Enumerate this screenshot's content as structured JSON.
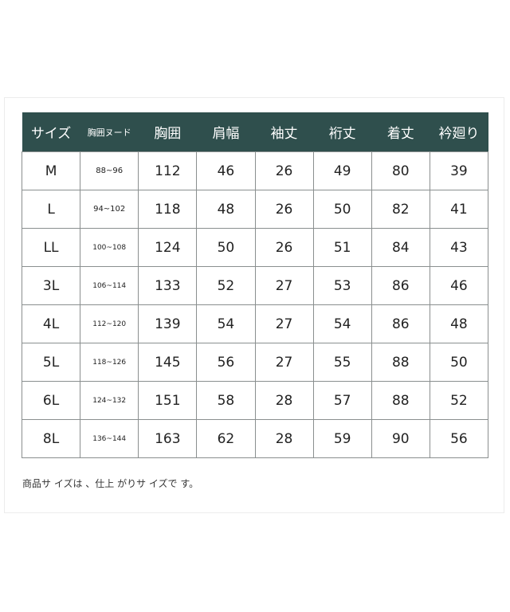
{
  "table": {
    "headers": [
      "サイズ",
      "胸囲ヌード",
      "胸囲",
      "肩幅",
      "袖丈",
      "裄丈",
      "着丈",
      "衿廻り"
    ],
    "rows": [
      [
        "M",
        "88~96",
        "112",
        "46",
        "26",
        "49",
        "80",
        "39"
      ],
      [
        "L",
        "94~102",
        "118",
        "48",
        "26",
        "50",
        "82",
        "41"
      ],
      [
        "LL",
        "100~108",
        "124",
        "50",
        "26",
        "51",
        "84",
        "43"
      ],
      [
        "3L",
        "106~114",
        "133",
        "52",
        "27",
        "53",
        "86",
        "46"
      ],
      [
        "4L",
        "112~120",
        "139",
        "54",
        "27",
        "54",
        "86",
        "48"
      ],
      [
        "5L",
        "118~126",
        "145",
        "56",
        "27",
        "55",
        "88",
        "50"
      ],
      [
        "6L",
        "124~132",
        "151",
        "58",
        "28",
        "57",
        "88",
        "52"
      ],
      [
        "8L",
        "136~144",
        "163",
        "62",
        "28",
        "59",
        "90",
        "56"
      ]
    ]
  },
  "note": "商品サ イズは 、仕上 がりサ イズで す。",
  "colors": {
    "header_bg": "#2f4f4d",
    "header_text": "#ffffff",
    "border": "#8a8f8f"
  }
}
